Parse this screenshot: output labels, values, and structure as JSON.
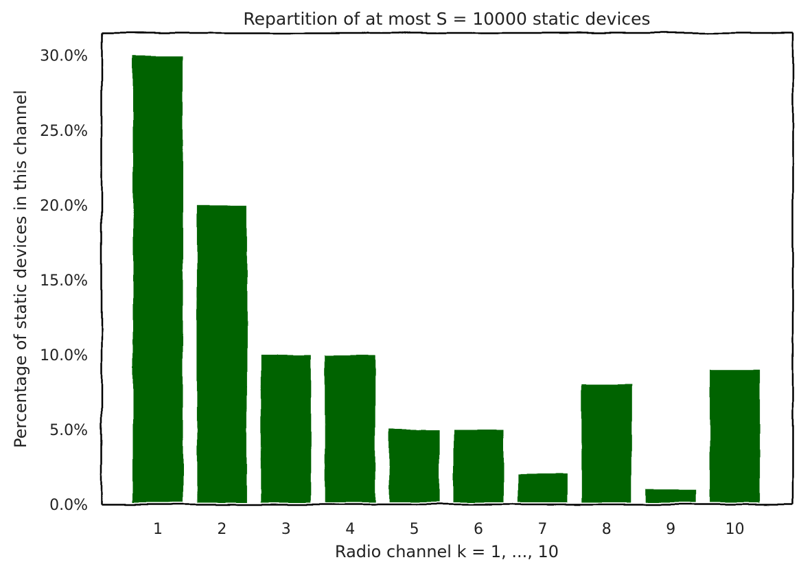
{
  "chart_data": {
    "type": "bar",
    "title": "Repartition of at most S = 10000 static devices",
    "xlabel": "Radio channel k = 1, ..., 10",
    "ylabel": "Percentage of static devices in this channel",
    "categories": [
      "1",
      "2",
      "3",
      "4",
      "5",
      "6",
      "7",
      "8",
      "9",
      "10"
    ],
    "values": [
      30.0,
      20.0,
      10.0,
      10.0,
      5.0,
      5.0,
      2.0,
      8.0,
      1.0,
      9.0
    ],
    "value_unit": "%",
    "ylim": [
      0,
      31.5
    ],
    "yticks": [
      0,
      5,
      10,
      15,
      20,
      25,
      30
    ],
    "ytick_labels": [
      "0.0%",
      "5.0%",
      "10.0%",
      "15.0%",
      "20.0%",
      "25.0%",
      "30.0%"
    ],
    "grid": false,
    "legend": "none",
    "style": "hand-drawn (xkcd)",
    "bar_color": "#006400",
    "axis_color": "#000000"
  }
}
